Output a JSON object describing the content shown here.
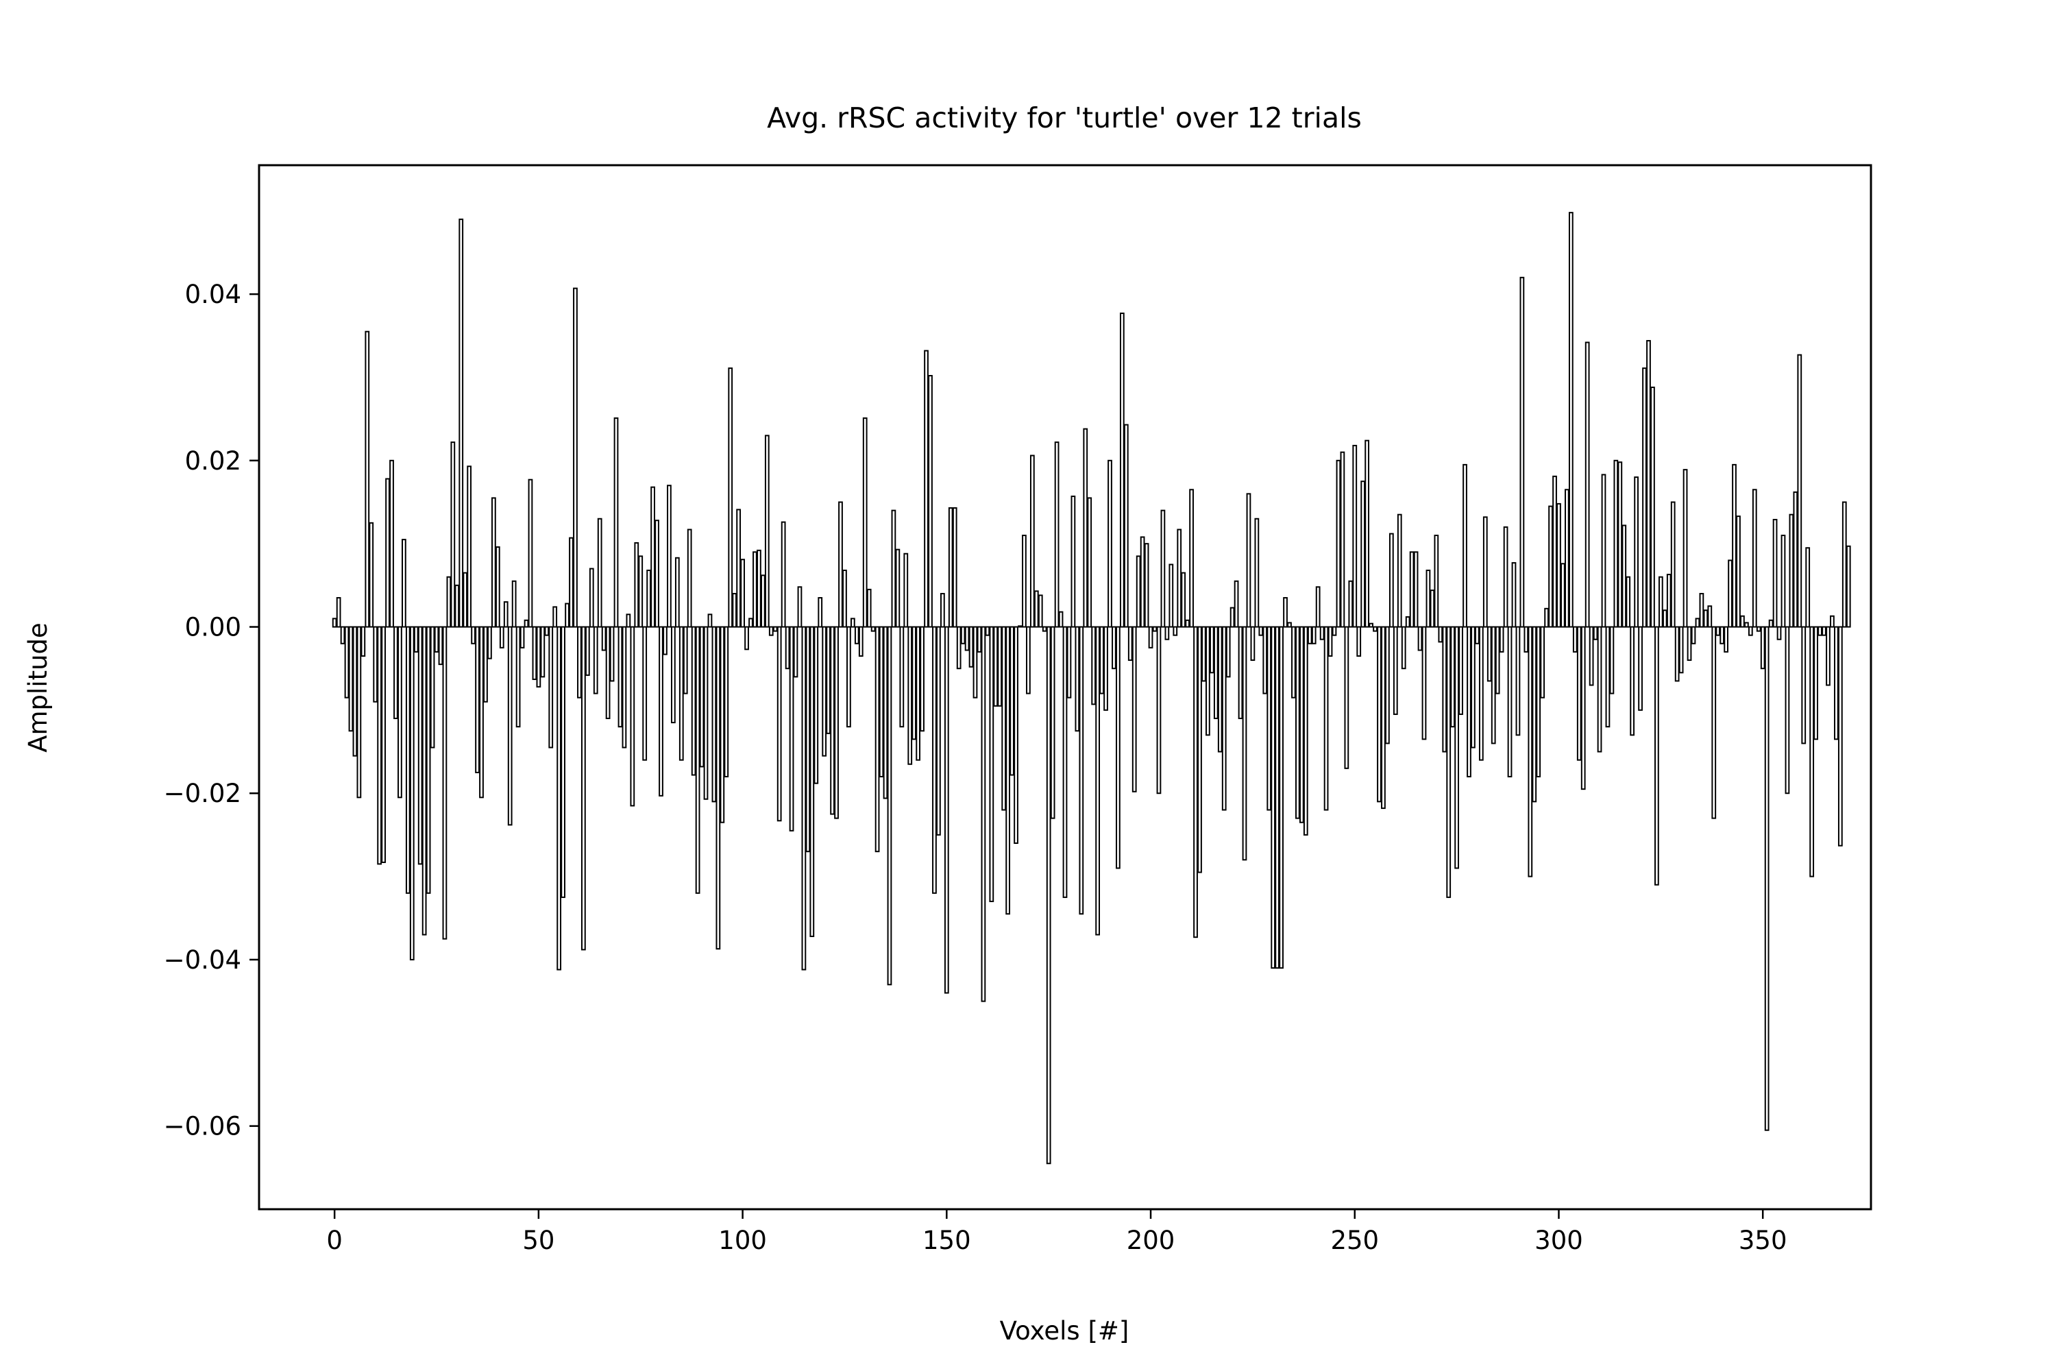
{
  "chart_data": {
    "type": "bar",
    "title": "Avg. rRSC activity for 'turtle' over 12 trials",
    "xlabel": "Voxels [#]",
    "ylabel": "Amplitude",
    "xlim": [
      -18.5,
      376.5
    ],
    "ylim": [
      -0.07,
      0.0555
    ],
    "xticks": [
      0,
      50,
      100,
      150,
      200,
      250,
      300,
      350
    ],
    "xtick_labels": [
      "0",
      "50",
      "100",
      "150",
      "200",
      "250",
      "300",
      "350"
    ],
    "yticks": [
      -0.06,
      -0.04,
      -0.02,
      0.0,
      0.02,
      0.04
    ],
    "ytick_labels": [
      "−0.06",
      "−0.04",
      "−0.02",
      "0.00",
      "0.02",
      "0.04"
    ],
    "grid": false,
    "legend": "none",
    "bar_color": "#000000",
    "bar_edge_color": "#000000",
    "series": [
      {
        "x_start": 0,
        "values": [
          0.001,
          0.0035,
          -0.002,
          -0.0085,
          -0.0125,
          -0.0155,
          -0.0205,
          -0.0035,
          0.0355,
          0.0125,
          -0.009,
          -0.0285,
          -0.0283,
          0.0178,
          0.02,
          -0.011,
          -0.0205,
          0.0105,
          -0.032,
          -0.04,
          -0.003,
          -0.0285,
          -0.037,
          -0.032,
          -0.0145,
          -0.003,
          -0.0045,
          -0.0375,
          0.006,
          0.0222,
          0.005,
          0.049,
          0.0065,
          0.0193,
          -0.002,
          -0.0175,
          -0.0205,
          -0.009,
          -0.0038,
          0.0155,
          0.0096,
          -0.0025,
          0.003,
          -0.0238,
          0.0055,
          -0.012,
          -0.0025,
          0.0008,
          0.0177,
          -0.0063,
          -0.0072,
          -0.006,
          -0.001,
          -0.0145,
          0.0024,
          -0.0412,
          -0.0325,
          0.0028,
          0.0107,
          0.0407,
          -0.0085,
          -0.0388,
          -0.0058,
          0.007,
          -0.008,
          0.013,
          -0.0028,
          -0.011,
          -0.0065,
          0.0251,
          -0.012,
          -0.0145,
          0.0015,
          -0.0215,
          0.0101,
          0.0085,
          -0.016,
          0.0068,
          0.0168,
          0.0128,
          -0.0203,
          -0.0033,
          0.017,
          -0.0115,
          0.0083,
          -0.016,
          -0.008,
          0.0117,
          -0.0178,
          -0.032,
          -0.0168,
          -0.0207,
          0.0015,
          -0.021,
          -0.0387,
          -0.0235,
          -0.018,
          0.0311,
          0.004,
          0.0141,
          0.0081,
          -0.0027,
          0.001,
          0.009,
          0.0092,
          0.0062,
          0.023,
          -0.001,
          -0.0005,
          -0.0233,
          0.0126,
          -0.005,
          -0.0245,
          -0.006,
          0.0048,
          -0.0412,
          -0.027,
          -0.0372,
          -0.0188,
          0.0035,
          -0.0155,
          -0.0128,
          -0.0225,
          -0.023,
          0.015,
          0.0068,
          -0.012,
          0.001,
          -0.002,
          -0.0035,
          0.0251,
          0.0045,
          -0.0005,
          -0.027,
          -0.018,
          -0.0206,
          -0.043,
          0.014,
          0.0093,
          -0.012,
          0.0088,
          -0.0165,
          -0.0135,
          -0.016,
          -0.0125,
          0.0332,
          0.0302,
          -0.032,
          -0.025,
          0.004,
          -0.044,
          0.0143,
          0.0143,
          -0.005,
          -0.002,
          -0.0028,
          -0.0048,
          -0.0085,
          -0.003,
          -0.045,
          -0.001,
          -0.033,
          -0.0095,
          -0.0095,
          -0.022,
          -0.0345,
          -0.0178,
          -0.026,
          0.0001,
          0.011,
          -0.008,
          0.0206,
          0.0043,
          0.0038,
          -0.0005,
          -0.0645,
          -0.023,
          0.0222,
          0.0018,
          -0.0325,
          -0.0085,
          0.0157,
          -0.0125,
          -0.0345,
          0.0238,
          0.0155,
          -0.0093,
          -0.037,
          -0.008,
          -0.01,
          0.02,
          -0.005,
          -0.029,
          0.0377,
          0.0243,
          -0.004,
          -0.0198,
          0.0085,
          0.0108,
          0.01,
          -0.0025,
          -0.0005,
          -0.02,
          0.014,
          -0.0015,
          0.0075,
          -0.001,
          0.0117,
          0.0065,
          0.0008,
          0.0165,
          -0.0373,
          -0.0295,
          -0.0065,
          -0.013,
          -0.0055,
          -0.011,
          -0.015,
          -0.022,
          -0.006,
          0.0023,
          0.0055,
          -0.011,
          -0.028,
          0.016,
          -0.004,
          0.013,
          -0.001,
          -0.008,
          -0.022,
          -0.041,
          -0.041,
          -0.041,
          0.0035,
          0.0005,
          -0.0085,
          -0.023,
          -0.0235,
          -0.025,
          -0.002,
          -0.002,
          0.0048,
          -0.0015,
          -0.022,
          -0.0035,
          -0.001,
          0.02,
          0.021,
          -0.017,
          0.0055,
          0.0218,
          -0.0035,
          0.0175,
          0.0224,
          0.0004,
          -0.0005,
          -0.021,
          -0.0218,
          -0.014,
          0.0112,
          -0.0105,
          0.0135,
          -0.005,
          0.0012,
          0.009,
          0.009,
          -0.0028,
          -0.0135,
          0.0068,
          0.0044,
          0.011,
          -0.0018,
          -0.015,
          -0.0325,
          -0.012,
          -0.029,
          -0.0105,
          0.0195,
          -0.018,
          -0.0145,
          -0.002,
          -0.016,
          0.0132,
          -0.0065,
          -0.014,
          -0.008,
          -0.003,
          0.012,
          -0.018,
          0.0077,
          -0.013,
          0.042,
          -0.003,
          -0.03,
          -0.021,
          -0.018,
          -0.0085,
          0.0022,
          0.0145,
          0.0181,
          0.0148,
          0.0076,
          0.0165,
          0.0498,
          -0.003,
          -0.016,
          -0.0195,
          0.0342,
          -0.007,
          -0.0015,
          -0.015,
          0.0183,
          -0.012,
          -0.008,
          0.02,
          0.0198,
          0.0122,
          0.006,
          -0.013,
          0.018,
          -0.01,
          0.0311,
          0.0344,
          0.0288,
          -0.031,
          0.006,
          0.002,
          0.0063,
          0.015,
          -0.0065,
          -0.0055,
          0.0189,
          -0.004,
          -0.002,
          0.001,
          0.004,
          0.002,
          0.0025,
          -0.023,
          -0.001,
          -0.002,
          -0.003,
          0.008,
          0.0195,
          0.0133,
          0.0013,
          0.0005,
          -0.001,
          0.0165,
          -0.0005,
          -0.005,
          -0.0605,
          0.0008,
          0.0129,
          -0.0015,
          0.011,
          -0.02,
          0.0135,
          0.0162,
          0.0327,
          -0.014,
          0.0095,
          -0.03,
          -0.0135,
          -0.001,
          -0.001,
          -0.007,
          0.0013,
          -0.0135,
          -0.0263,
          0.015,
          0.0097
        ]
      }
    ]
  }
}
